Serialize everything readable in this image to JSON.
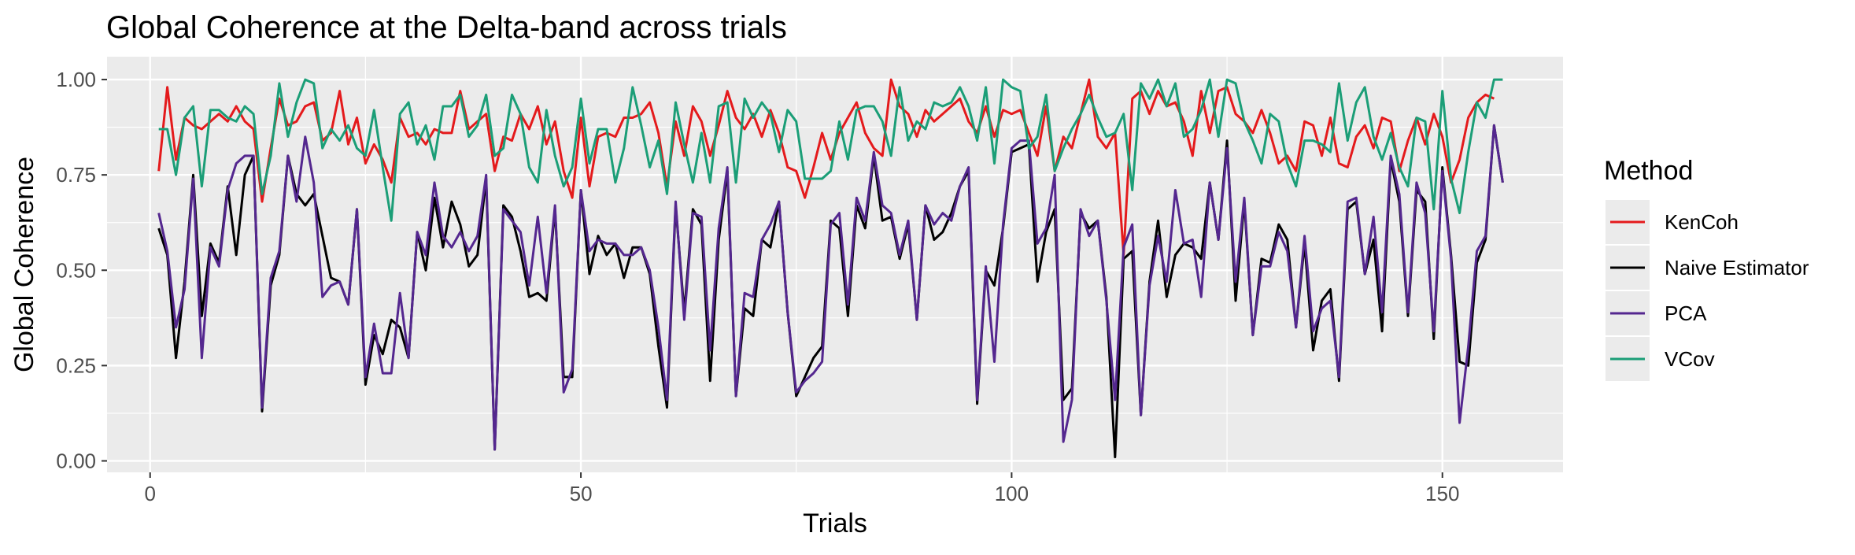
{
  "chart_data": {
    "type": "line",
    "title": "Global Coherence at the Delta-band across trials",
    "xlabel": "Trials",
    "ylabel": "Global Coherence",
    "xlim": [
      -5,
      164
    ],
    "ylim": [
      -0.03,
      1.06
    ],
    "x_ticks": [
      0,
      50,
      100,
      150
    ],
    "x_tick_labels": [
      "0",
      "50",
      "100",
      "150"
    ],
    "y_ticks": [
      0,
      0.25,
      0.5,
      0.75,
      1.0
    ],
    "y_tick_labels": [
      "0.00",
      "0.25",
      "0.50",
      "0.75",
      "1.00"
    ],
    "grid": true,
    "legend": {
      "title": "Method",
      "position": "right"
    },
    "x_start": 1,
    "series": [
      {
        "name": "KenCoh",
        "color": "#e41a1c",
        "values": [
          0.76,
          0.98,
          0.79,
          0.9,
          0.88,
          0.87,
          0.89,
          0.91,
          0.89,
          0.93,
          0.89,
          0.87,
          0.68,
          0.82,
          0.95,
          0.88,
          0.89,
          0.93,
          0.94,
          0.84,
          0.86,
          0.97,
          0.83,
          0.9,
          0.78,
          0.83,
          0.79,
          0.73,
          0.9,
          0.85,
          0.86,
          0.83,
          0.87,
          0.86,
          0.86,
          0.97,
          0.87,
          0.89,
          0.91,
          0.76,
          0.85,
          0.84,
          0.91,
          0.87,
          0.93,
          0.83,
          0.89,
          0.76,
          0.69,
          0.9,
          0.72,
          0.85,
          0.86,
          0.85,
          0.9,
          0.9,
          0.91,
          0.94,
          0.86,
          0.72,
          0.89,
          0.8,
          0.93,
          0.89,
          0.8,
          0.88,
          0.97,
          0.9,
          0.87,
          0.91,
          0.85,
          0.92,
          0.86,
          0.77,
          0.76,
          0.69,
          0.77,
          0.86,
          0.79,
          0.86,
          0.9,
          0.94,
          0.86,
          0.82,
          0.8,
          1.0,
          0.93,
          0.91,
          0.85,
          0.92,
          0.89,
          0.91,
          0.93,
          0.95,
          0.89,
          0.86,
          0.93,
          0.85,
          0.92,
          0.91,
          0.92,
          0.86,
          0.8,
          0.93,
          0.76,
          0.85,
          0.82,
          0.91,
          1.0,
          0.85,
          0.82,
          0.86,
          0.54,
          0.95,
          0.97,
          0.91,
          0.97,
          0.93,
          0.94,
          0.89,
          0.8,
          0.97,
          0.86,
          0.97,
          0.98,
          0.91,
          0.89,
          0.86,
          0.92,
          0.86,
          0.78,
          0.8,
          0.76,
          0.89,
          0.88,
          0.8,
          0.9,
          0.78,
          0.77,
          0.85,
          0.88,
          0.82,
          0.9,
          0.89,
          0.76,
          0.84,
          0.9,
          0.83,
          0.91,
          0.85,
          0.73,
          0.79,
          0.9,
          0.94,
          0.96,
          0.95
        ]
      },
      {
        "name": "Naive Estimator",
        "color": "#000000",
        "values": [
          0.61,
          0.54,
          0.27,
          0.47,
          0.75,
          0.38,
          0.57,
          0.52,
          0.72,
          0.54,
          0.75,
          0.8,
          0.13,
          0.46,
          0.54,
          0.8,
          0.7,
          0.67,
          0.7,
          0.59,
          0.48,
          0.47,
          0.41,
          0.66,
          0.2,
          0.33,
          0.28,
          0.37,
          0.35,
          0.27,
          0.6,
          0.5,
          0.69,
          0.56,
          0.68,
          0.62,
          0.51,
          0.54,
          0.74,
          0.03,
          0.67,
          0.64,
          0.55,
          0.43,
          0.44,
          0.42,
          0.66,
          0.22,
          0.22,
          0.71,
          0.49,
          0.59,
          0.54,
          0.57,
          0.48,
          0.56,
          0.56,
          0.49,
          0.3,
          0.14,
          0.67,
          0.39,
          0.66,
          0.62,
          0.21,
          0.58,
          0.76,
          0.17,
          0.4,
          0.38,
          0.58,
          0.56,
          0.68,
          0.39,
          0.17,
          0.22,
          0.27,
          0.3,
          0.63,
          0.61,
          0.38,
          0.67,
          0.61,
          0.8,
          0.63,
          0.64,
          0.53,
          0.62,
          0.37,
          0.67,
          0.58,
          0.6,
          0.65,
          0.72,
          0.76,
          0.15,
          0.5,
          0.46,
          0.61,
          0.81,
          0.82,
          0.83,
          0.47,
          0.6,
          0.66,
          0.16,
          0.19,
          0.65,
          0.61,
          0.63,
          0.43,
          0.01,
          0.53,
          0.55,
          0.12,
          0.47,
          0.63,
          0.43,
          0.54,
          0.57,
          0.56,
          0.53,
          0.73,
          0.58,
          0.84,
          0.42,
          0.68,
          0.33,
          0.53,
          0.52,
          0.62,
          0.58,
          0.35,
          0.57,
          0.29,
          0.42,
          0.45,
          0.21,
          0.66,
          0.68,
          0.49,
          0.58,
          0.34,
          0.79,
          0.68,
          0.38,
          0.71,
          0.68,
          0.32,
          0.77,
          0.54,
          0.26,
          0.25,
          0.52,
          0.58,
          0.88,
          0.73
        ]
      },
      {
        "name": "PCA",
        "color": "#54278f",
        "values": [
          0.65,
          0.55,
          0.35,
          0.45,
          0.74,
          0.27,
          0.56,
          0.51,
          0.71,
          0.78,
          0.8,
          0.8,
          0.14,
          0.48,
          0.55,
          0.8,
          0.68,
          0.85,
          0.73,
          0.43,
          0.46,
          0.47,
          0.41,
          0.66,
          0.22,
          0.36,
          0.23,
          0.23,
          0.44,
          0.27,
          0.6,
          0.54,
          0.73,
          0.59,
          0.56,
          0.6,
          0.55,
          0.59,
          0.75,
          0.03,
          0.66,
          0.63,
          0.6,
          0.46,
          0.64,
          0.44,
          0.67,
          0.18,
          0.24,
          0.71,
          0.55,
          0.58,
          0.57,
          0.57,
          0.54,
          0.54,
          0.56,
          0.5,
          0.35,
          0.16,
          0.68,
          0.37,
          0.65,
          0.64,
          0.29,
          0.61,
          0.77,
          0.17,
          0.44,
          0.43,
          0.58,
          0.62,
          0.68,
          0.39,
          0.18,
          0.21,
          0.23,
          0.26,
          0.62,
          0.65,
          0.41,
          0.69,
          0.63,
          0.81,
          0.67,
          0.65,
          0.54,
          0.63,
          0.37,
          0.67,
          0.62,
          0.65,
          0.63,
          0.72,
          0.77,
          0.16,
          0.51,
          0.26,
          0.62,
          0.82,
          0.84,
          0.84,
          0.57,
          0.61,
          0.75,
          0.05,
          0.16,
          0.66,
          0.59,
          0.63,
          0.42,
          0.16,
          0.56,
          0.62,
          0.12,
          0.46,
          0.59,
          0.47,
          0.71,
          0.57,
          0.58,
          0.43,
          0.73,
          0.58,
          0.82,
          0.47,
          0.69,
          0.33,
          0.51,
          0.51,
          0.6,
          0.55,
          0.35,
          0.59,
          0.34,
          0.4,
          0.42,
          0.22,
          0.68,
          0.69,
          0.49,
          0.64,
          0.39,
          0.8,
          0.7,
          0.39,
          0.73,
          0.65,
          0.34,
          0.76,
          0.53,
          0.1,
          0.3,
          0.55,
          0.59,
          0.88,
          0.73
        ]
      },
      {
        "name": "VCov",
        "color": "#1b9e77",
        "values": [
          0.87,
          0.87,
          0.75,
          0.9,
          0.93,
          0.72,
          0.92,
          0.92,
          0.9,
          0.89,
          0.93,
          0.91,
          0.7,
          0.8,
          0.99,
          0.85,
          0.94,
          1.0,
          0.99,
          0.82,
          0.87,
          0.84,
          0.88,
          0.82,
          0.8,
          0.92,
          0.77,
          0.63,
          0.91,
          0.94,
          0.83,
          0.88,
          0.79,
          0.93,
          0.93,
          0.96,
          0.85,
          0.88,
          0.96,
          0.8,
          0.82,
          0.96,
          0.91,
          0.77,
          0.73,
          0.92,
          0.8,
          0.72,
          0.77,
          0.95,
          0.78,
          0.87,
          0.87,
          0.73,
          0.82,
          0.98,
          0.88,
          0.77,
          0.84,
          0.7,
          0.94,
          0.83,
          0.73,
          0.86,
          0.73,
          0.93,
          0.94,
          0.73,
          0.95,
          0.9,
          0.94,
          0.91,
          0.81,
          0.92,
          0.89,
          0.74,
          0.74,
          0.74,
          0.76,
          0.89,
          0.79,
          0.92,
          0.93,
          0.93,
          0.89,
          0.8,
          0.98,
          0.84,
          0.89,
          0.87,
          0.94,
          0.93,
          0.94,
          0.98,
          0.93,
          0.84,
          0.98,
          0.78,
          1.0,
          0.98,
          0.97,
          0.82,
          0.85,
          0.96,
          0.76,
          0.82,
          0.87,
          0.91,
          0.96,
          0.9,
          0.85,
          0.86,
          0.91,
          0.71,
          0.99,
          0.95,
          1.0,
          0.93,
          0.99,
          0.85,
          0.87,
          0.92,
          1.0,
          0.85,
          1.0,
          0.99,
          0.89,
          0.84,
          0.78,
          0.91,
          0.89,
          0.78,
          0.72,
          0.84,
          0.84,
          0.83,
          0.81,
          0.99,
          0.84,
          0.94,
          0.98,
          0.85,
          0.79,
          0.86,
          0.77,
          0.72,
          0.9,
          0.89,
          0.66,
          0.97,
          0.74,
          0.65,
          0.81,
          0.94,
          0.9,
          1.0,
          1.0
        ]
      }
    ]
  }
}
